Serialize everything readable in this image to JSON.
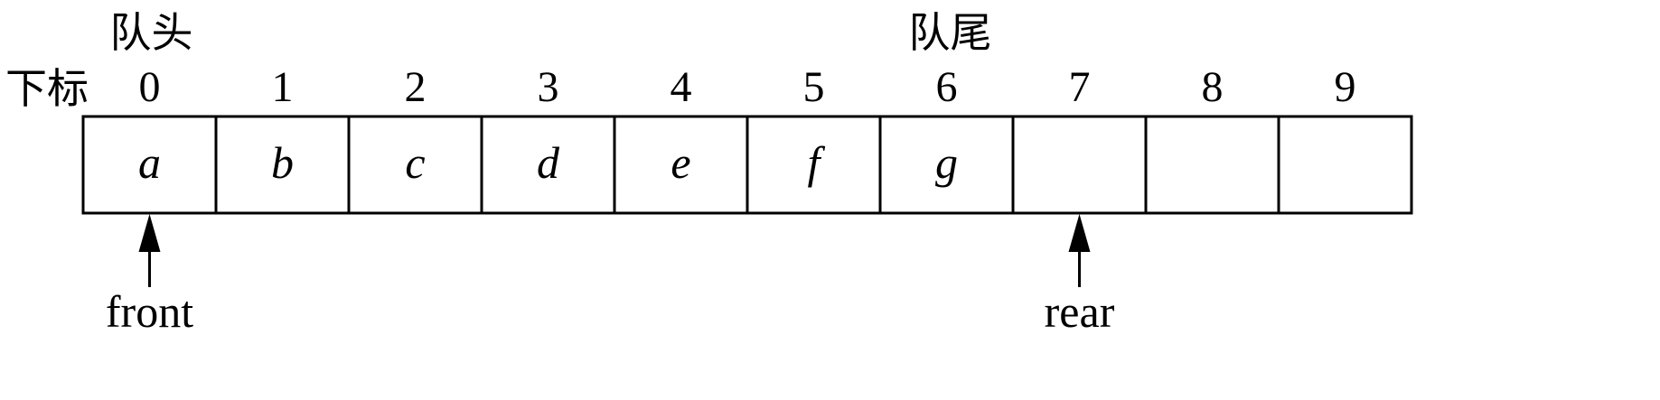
{
  "labels": {
    "head": "队头",
    "tail": "队尾",
    "index": "下标"
  },
  "queue": {
    "indices": [
      "0",
      "1",
      "2",
      "3",
      "4",
      "5",
      "6",
      "7",
      "8",
      "9"
    ],
    "cells": [
      "a",
      "b",
      "c",
      "d",
      "e",
      "f",
      "g",
      "",
      "",
      ""
    ],
    "head_index": 0,
    "tail_index": 6
  },
  "pointers": [
    {
      "name": "front",
      "index": 0
    },
    {
      "name": "rear",
      "index": 7
    }
  ]
}
